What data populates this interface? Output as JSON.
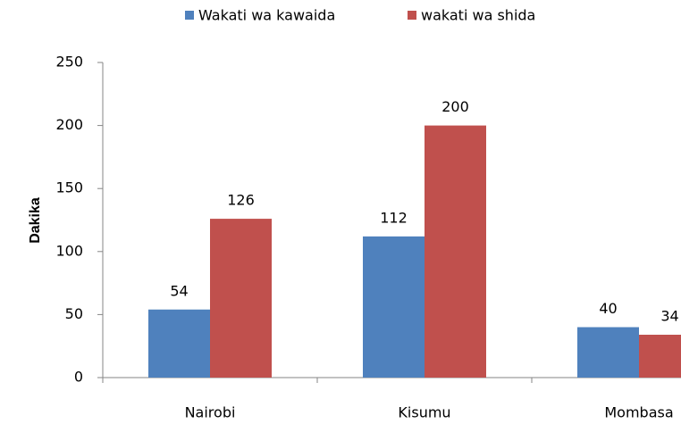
{
  "chart_data": {
    "type": "bar",
    "ylabel": "Dakika",
    "categories": [
      "Nairobi",
      "Kisumu",
      "Mombasa"
    ],
    "series": [
      {
        "name": "Wakati wa kawaida",
        "color": "#4f81bd",
        "values": [
          54,
          112,
          40
        ]
      },
      {
        "name": "wakati wa shida",
        "color": "#c0504d",
        "values": [
          126,
          200,
          34
        ]
      }
    ],
    "ylim": [
      0,
      250
    ],
    "yticks": [
      0,
      50,
      100,
      150,
      200,
      250
    ],
    "grid": false,
    "legend": "top"
  }
}
